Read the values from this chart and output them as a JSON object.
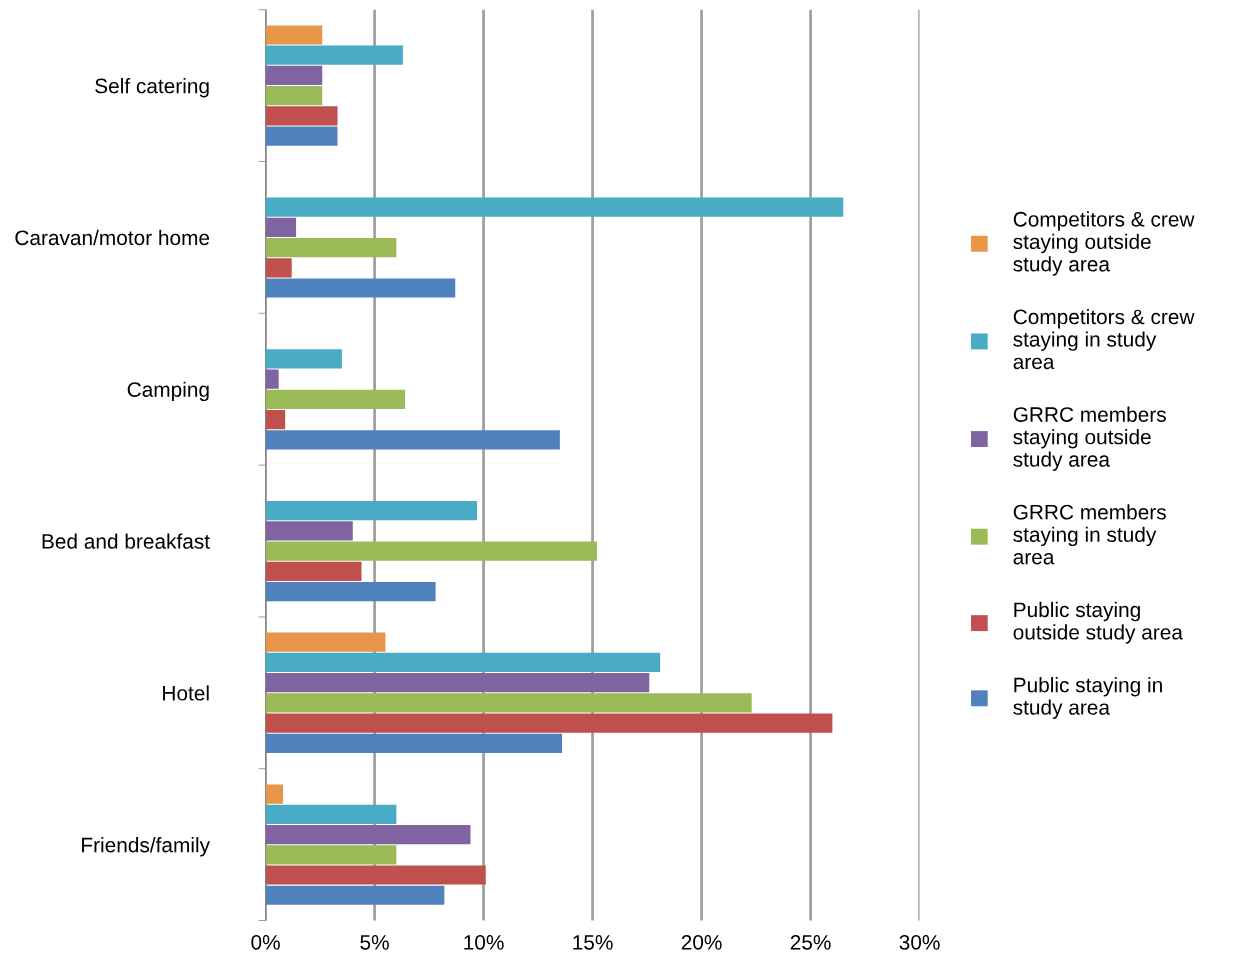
{
  "chart_data": {
    "type": "bar",
    "orientation": "horizontal",
    "categories": [
      "Self catering",
      "Caravan/motor home",
      "Camping",
      "Bed and breakfast",
      "Hotel",
      "Friends/family"
    ],
    "series": [
      {
        "name": "Competitors & crew staying outside study area",
        "color": "#e8964a",
        "values": [
          2.6,
          null,
          null,
          null,
          5.5,
          0.8
        ]
      },
      {
        "name": "Competitors & crew staying in study area",
        "color": "#4aabc4",
        "values": [
          6.3,
          26.5,
          3.5,
          9.7,
          18.1,
          6.0
        ]
      },
      {
        "name": "GRRC members staying outside study area",
        "color": "#8064a2",
        "values": [
          2.6,
          1.4,
          0.6,
          4.0,
          17.6,
          9.4
        ]
      },
      {
        "name": "GRRC members staying in study area",
        "color": "#9bbb59",
        "values": [
          2.6,
          6.0,
          6.4,
          15.2,
          22.3,
          6.0
        ]
      },
      {
        "name": "Public staying outside study area",
        "color": "#c0504d",
        "values": [
          3.3,
          1.2,
          0.9,
          4.4,
          26.0,
          10.1
        ]
      },
      {
        "name": "Public staying in study area",
        "color": "#4f81bd",
        "values": [
          3.3,
          8.7,
          13.5,
          7.8,
          13.6,
          8.2
        ]
      }
    ],
    "xlim": [
      0,
      30
    ],
    "xticks": [
      {
        "value": 0,
        "label": "0%"
      },
      {
        "value": 5,
        "label": "5%"
      },
      {
        "value": 10,
        "label": "10%"
      },
      {
        "value": 15,
        "label": "15%"
      },
      {
        "value": 20,
        "label": "20%"
      },
      {
        "value": 25,
        "label": "25%"
      },
      {
        "value": 30,
        "label": "30%"
      }
    ],
    "grid": "x",
    "legend": "right"
  }
}
